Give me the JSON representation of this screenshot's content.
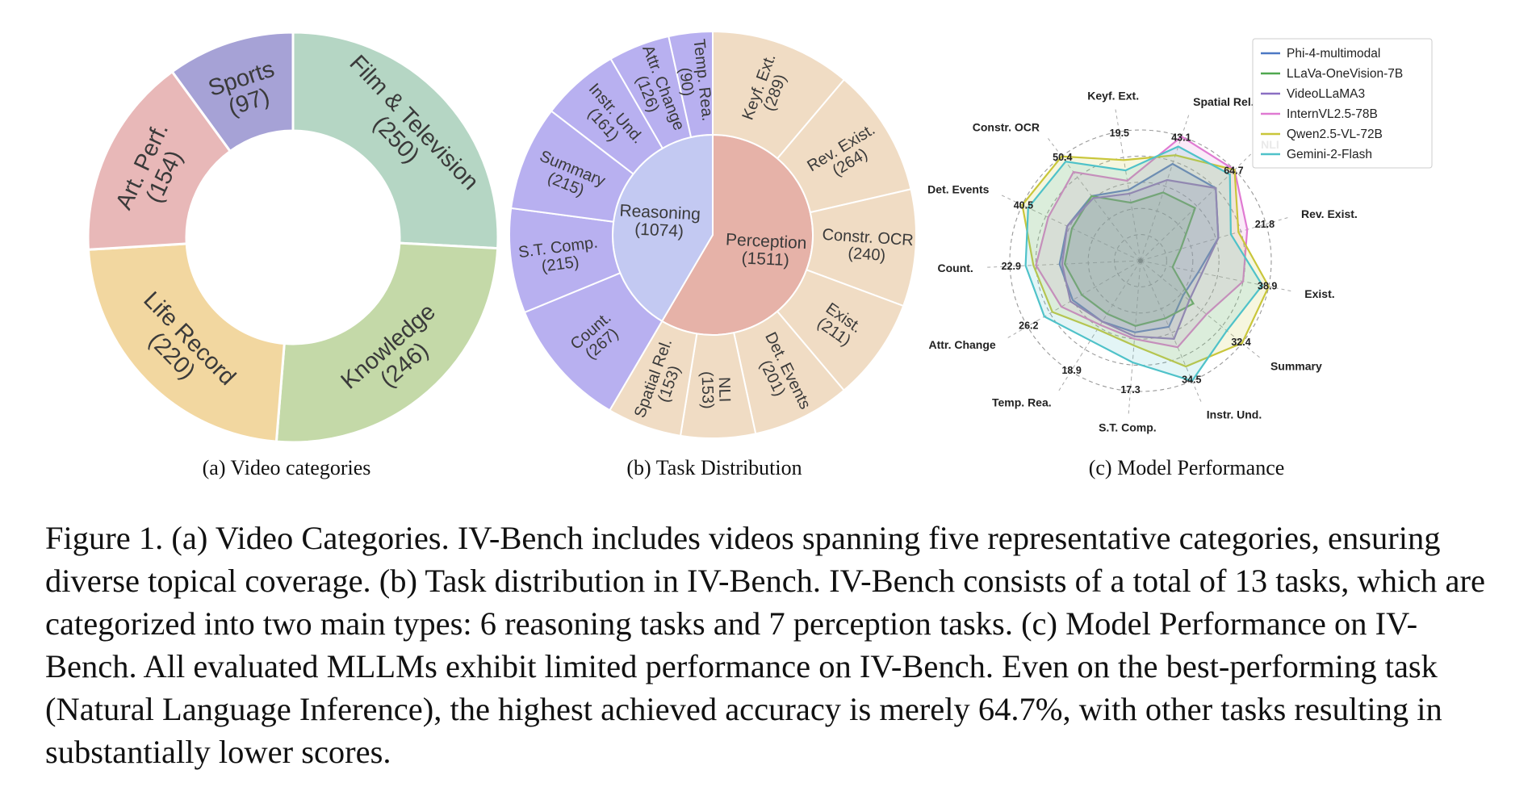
{
  "panel_captions": {
    "a": "(a) Video categories",
    "b": "(b) Task Distribution",
    "c": "(c) Model Performance"
  },
  "figure_caption": "Figure 1. (a) Video Categories. IV-Bench includes videos spanning five representative categories, ensuring diverse topical coverage. (b) Task distribution in IV-Bench. IV-Bench consists of a total of 13 tasks, which are categorized into two main types: 6 reasoning tasks and 7 perception tasks. (c) Model Performance on IV-Bench.  All evaluated MLLMs exhibit limited performance on IV-Bench. Even on the best-performing task (Natural Language Inference), the highest achieved accuracy is merely 64.7%, with other tasks resulting in substantially lower scores.",
  "chart_data": [
    {
      "type": "pie",
      "variant": "donut",
      "title": "",
      "start_angle_deg": 0,
      "direction": "clockwise",
      "slices": [
        {
          "name": "Film & Television",
          "label": "(250)",
          "value": 250,
          "color": "#b5d6c4"
        },
        {
          "name": "Knowledge",
          "label": "(246)",
          "value": 246,
          "color": "#c4d9a8"
        },
        {
          "name": "Life Record",
          "label": "(220)",
          "value": 220,
          "color": "#f2d7a0"
        },
        {
          "name": "Art. Perf.",
          "label": "(154)",
          "value": 154,
          "color": "#e8b8b8"
        },
        {
          "name": "Sports",
          "label": "(97)",
          "value": 97,
          "color": "#a6a2d6"
        }
      ]
    },
    {
      "type": "pie",
      "variant": "sunburst",
      "title": "",
      "start_angle_deg": 0,
      "direction": "clockwise",
      "inner": [
        {
          "name": "Perception",
          "label": "(1511)",
          "value": 1511,
          "color": "#e6b2a8"
        },
        {
          "name": "Reasoning",
          "label": "(1074)",
          "value": 1074,
          "color": "#c3c9f2"
        }
      ],
      "outer": [
        {
          "name": "Keyf. Ext.",
          "label": "(289)",
          "value": 289,
          "group": "Perception",
          "color": "#f0dcc4"
        },
        {
          "name": "Rev. Exist.",
          "label": "(264)",
          "value": 264,
          "group": "Perception",
          "color": "#f0dcc4"
        },
        {
          "name": "Constr. OCR",
          "label": "(240)",
          "value": 240,
          "group": "Perception",
          "color": "#f0dcc4"
        },
        {
          "name": "Exist.",
          "label": "(211)",
          "value": 211,
          "group": "Perception",
          "color": "#f0dcc4"
        },
        {
          "name": "Det. Events",
          "label": "(201)",
          "value": 201,
          "group": "Perception",
          "color": "#f0dcc4"
        },
        {
          "name": "NLI",
          "label": "(153)",
          "value": 153,
          "group": "Perception",
          "color": "#f0dcc4"
        },
        {
          "name": "Spatial Rel.",
          "label": "(153)",
          "value": 153,
          "group": "Perception",
          "color": "#f0dcc4"
        },
        {
          "name": "Count.",
          "label": "(267)",
          "value": 267,
          "group": "Reasoning",
          "color": "#b8b0f0"
        },
        {
          "name": "S.T. Comp.",
          "label": "(215)",
          "value": 215,
          "group": "Reasoning",
          "color": "#b8b0f0"
        },
        {
          "name": "Summary",
          "label": "(215)",
          "value": 215,
          "group": "Reasoning",
          "color": "#b8b0f0"
        },
        {
          "name": "Instr. Und.",
          "label": "(161)",
          "value": 161,
          "group": "Reasoning",
          "color": "#b8b0f0"
        },
        {
          "name": "Attr. Change",
          "label": "(126)",
          "value": 126,
          "group": "Reasoning",
          "color": "#b8b0f0"
        },
        {
          "name": "Temp. Rea.",
          "label": "(90)",
          "value": 90,
          "group": "Reasoning",
          "color": "#b8b0f0"
        }
      ]
    },
    {
      "type": "radar",
      "title": "",
      "grid": true,
      "legend_position": "top-right",
      "axes": [
        "NLI",
        "Rev. Exist.",
        "Exist.",
        "Summary",
        "Instr. Und.",
        "S.T. Comp.",
        "Temp. Rea.",
        "Attr. Change",
        "Count.",
        "Det. Events",
        "Constr. OCR",
        "Keyf. Ext.",
        "Spatial Rel."
      ],
      "axis_max": [
        64.7,
        21.8,
        38.9,
        32.4,
        34.5,
        17.3,
        18.9,
        26.2,
        22.9,
        40.5,
        50.4,
        19.5,
        43.1
      ],
      "max_labels": [
        "64.7",
        "21.8",
        "38.9",
        "32.4",
        "34.5",
        "17.3",
        "18.9",
        "26.2",
        "22.9",
        "40.5",
        "50.4",
        "19.5",
        "43.1"
      ],
      "series": [
        {
          "name": "Phi-4-multimodal",
          "color": "#4c78c4",
          "values": [
            0.8,
            0.62,
            0.45,
            0.42,
            0.55,
            0.55,
            0.55,
            0.6,
            0.62,
            0.62,
            0.62,
            0.55,
            0.78
          ]
        },
        {
          "name": "LLaVa-OneVision-7B",
          "color": "#4fa84f",
          "values": [
            0.58,
            0.32,
            0.25,
            0.52,
            0.48,
            0.5,
            0.48,
            0.52,
            0.58,
            0.58,
            0.62,
            0.45,
            0.55
          ]
        },
        {
          "name": "VideoLLaMA3",
          "color": "#8a6fc2",
          "values": [
            0.8,
            0.62,
            0.48,
            0.48,
            0.65,
            0.58,
            0.55,
            0.62,
            0.6,
            0.62,
            0.6,
            0.52,
            0.65
          ]
        },
        {
          "name": "InternVL2.5-78B",
          "color": "#e07ad2",
          "values": [
            1.0,
            0.85,
            0.8,
            0.65,
            0.72,
            0.6,
            0.58,
            0.7,
            0.8,
            0.78,
            0.85,
            0.62,
            1.0
          ]
        },
        {
          "name": "Qwen2.5-VL-72B",
          "color": "#c9c63a",
          "values": [
            1.0,
            0.78,
            1.0,
            1.0,
            0.88,
            0.65,
            0.62,
            0.78,
            0.82,
            1.0,
            1.0,
            0.78,
            0.85
          ]
        },
        {
          "name": "Gemini-2-Flash",
          "color": "#4fc2c9",
          "values": [
            0.95,
            0.72,
            0.95,
            0.85,
            1.0,
            0.78,
            0.72,
            0.85,
            0.88,
            0.95,
            0.95,
            0.7,
            0.92
          ]
        }
      ]
    }
  ]
}
